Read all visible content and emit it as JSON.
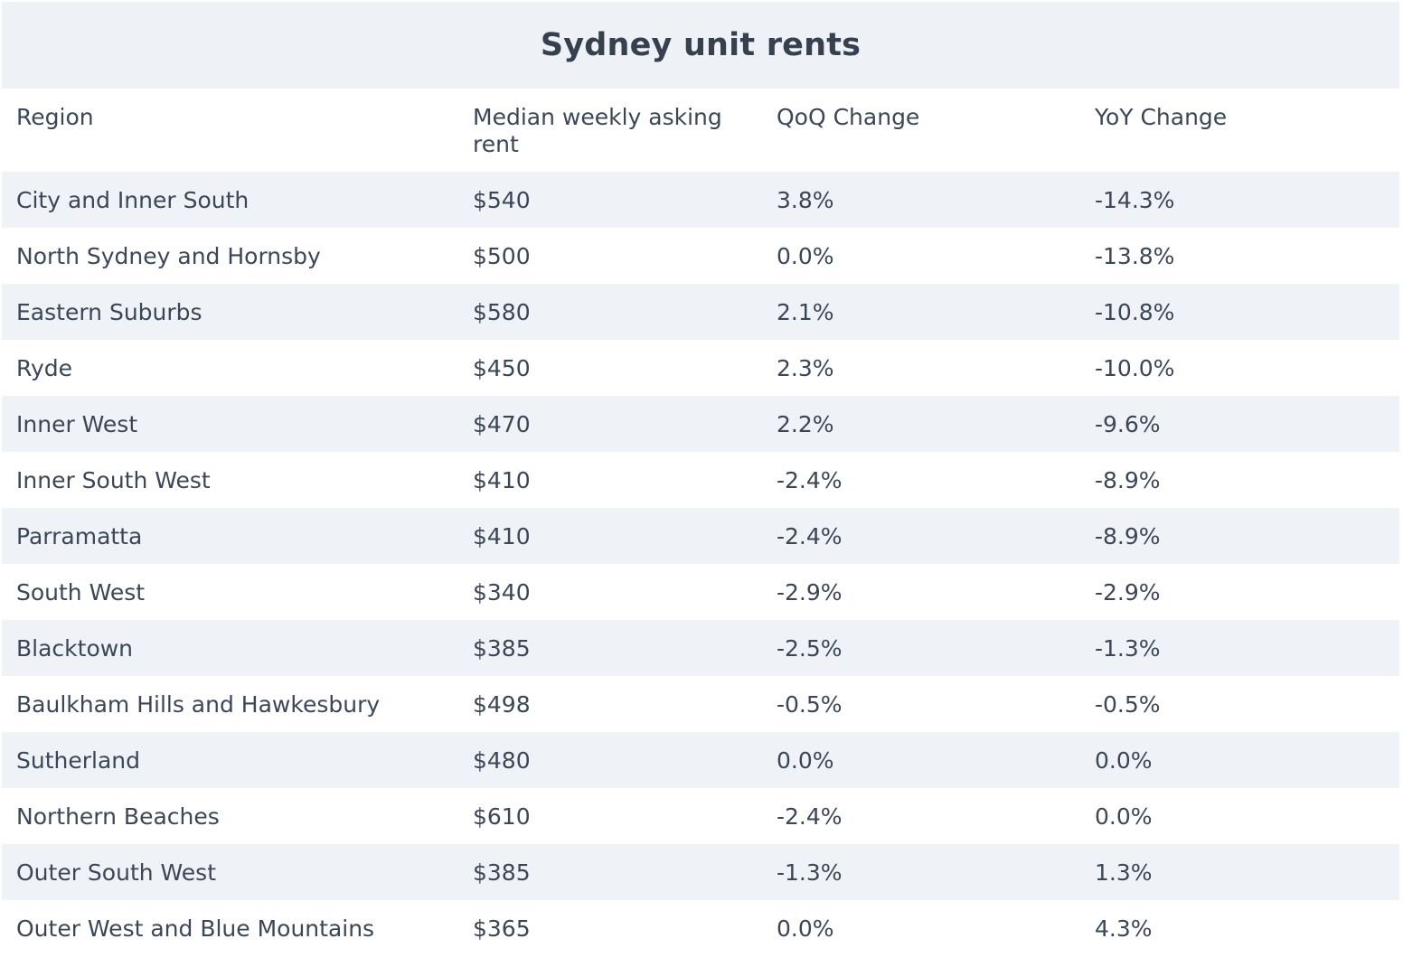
{
  "chart_data": {
    "type": "table",
    "title": "Sydney unit rents",
    "columns": [
      "Region",
      "Median weekly asking rent",
      "QoQ Change",
      "YoY Change"
    ],
    "rows": [
      [
        "City and Inner South",
        "$540",
        "3.8%",
        "-14.3%"
      ],
      [
        "North Sydney and Hornsby",
        "$500",
        "0.0%",
        "-13.8%"
      ],
      [
        "Eastern Suburbs",
        "$580",
        "2.1%",
        "-10.8%"
      ],
      [
        "Ryde",
        "$450",
        "2.3%",
        "-10.0%"
      ],
      [
        "Inner West",
        "$470",
        "2.2%",
        "-9.6%"
      ],
      [
        "Inner South West",
        "$410",
        "-2.4%",
        "-8.9%"
      ],
      [
        "Parramatta",
        "$410",
        "-2.4%",
        "-8.9%"
      ],
      [
        "South West",
        "$340",
        "-2.9%",
        "-2.9%"
      ],
      [
        "Blacktown",
        "$385",
        "-2.5%",
        "-1.3%"
      ],
      [
        "Baulkham Hills and Hawkesbury",
        "$498",
        "-0.5%",
        "-0.5%"
      ],
      [
        "Sutherland",
        "$480",
        "0.0%",
        "0.0%"
      ],
      [
        "Northern Beaches",
        "$610",
        "-2.4%",
        "0.0%"
      ],
      [
        "Outer South West",
        "$385",
        "-1.3%",
        "1.3%"
      ],
      [
        "Outer West and Blue Mountains",
        "$365",
        "0.0%",
        "4.3%"
      ]
    ]
  },
  "colors": {
    "title_background": "#eef2f6",
    "stripe_background": "#eff3f7",
    "text": "#3b4656"
  }
}
